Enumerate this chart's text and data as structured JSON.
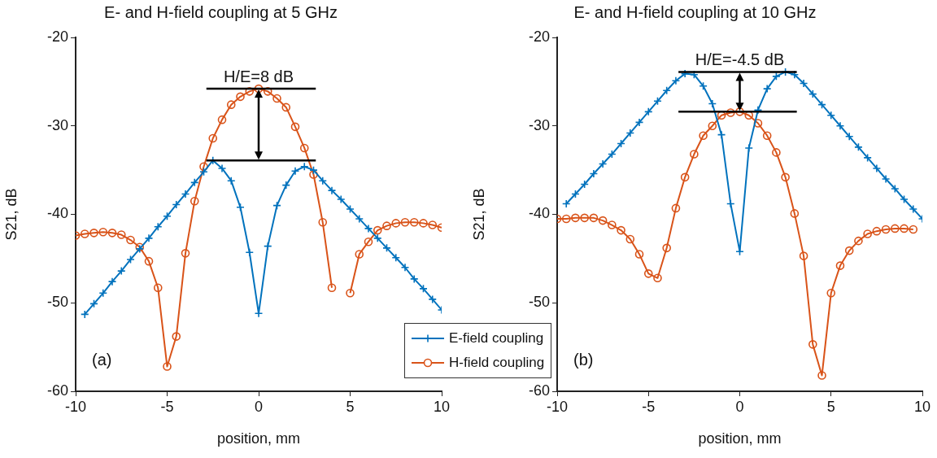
{
  "chart_data": [
    {
      "type": "line",
      "title": "E- and H-field coupling at 5 GHz",
      "xlabel": "position, mm",
      "ylabel": "S21, dB",
      "xlim": [
        -10,
        10
      ],
      "xticks": [
        -10,
        -5,
        0,
        5,
        10
      ],
      "ylim": [
        -60,
        -20
      ],
      "yticks": [
        -60,
        -50,
        -40,
        -30,
        -20
      ],
      "grid": false,
      "legend": "bottom right",
      "annotations": [
        {
          "text": "H/E=8 dB",
          "x": 0,
          "y": -25.8
        },
        "(a)"
      ],
      "series": [
        {
          "name": "E-field coupling",
          "color": "#0072bd",
          "marker": "cross",
          "x": [
            -9.5,
            -9,
            -8.5,
            -8,
            -7.5,
            -7,
            -6.5,
            -6,
            -5.5,
            -5,
            -4.5,
            -4,
            -3.5,
            -3,
            -2.5,
            -2,
            -1.5,
            -1,
            -0.5,
            0,
            0.5,
            1,
            1.5,
            2,
            2.5,
            3,
            3.5,
            4,
            4.5,
            5,
            5.5,
            6,
            6.5,
            7,
            7.5,
            8,
            8.5,
            9,
            9.5,
            10
          ],
          "values": [
            -51.3,
            -50.1,
            -48.9,
            -47.6,
            -46.4,
            -45.1,
            -43.9,
            -42.7,
            -41.4,
            -40.2,
            -38.9,
            -37.7,
            -36.4,
            -35.2,
            -33.9,
            -34.8,
            -36.2,
            -39.2,
            -44.3,
            -51.2,
            -43.6,
            -39,
            -36.7,
            -35.1,
            -34.6,
            -35,
            -36.2,
            -37.3,
            -38.3,
            -39.4,
            -40.5,
            -41.6,
            -42.7,
            -43.8,
            -44.9,
            -46,
            -47.3,
            -48.4,
            -49.6,
            -50.8
          ]
        },
        {
          "name": "H-field coupling",
          "color": "#d95319",
          "marker": "circle",
          "x": [
            -10,
            -9.5,
            -9,
            -8.5,
            -8,
            -7.5,
            -7,
            -6.5,
            -6,
            -5.5,
            -5,
            -4.5,
            -4,
            -3.5,
            -3,
            -2.5,
            -2,
            -1.5,
            -1,
            -0.5,
            0,
            0.5,
            1,
            1.5,
            2,
            2.5,
            3,
            3.5,
            4,
            4.5,
            5,
            5.5,
            6,
            6.5,
            7,
            7.5,
            8,
            8.5,
            9,
            9.5,
            10
          ],
          "values": [
            -42.4,
            -42.2,
            -42.1,
            -42,
            -42.1,
            -42.3,
            -42.9,
            -43.7,
            -45.3,
            -48.3,
            -57.2,
            -53.8,
            -44.4,
            -38.5,
            -34.6,
            -31.4,
            -29.3,
            -27.6,
            -26.7,
            -26.1,
            -25.8,
            -26.1,
            -26.9,
            -27.9,
            -30.1,
            -32.5,
            -35.5,
            -40.9,
            -48.3,
            null,
            -48.9,
            -44.5,
            -43.1,
            -41.8,
            -41.3,
            -41,
            -40.9,
            -40.9,
            -41,
            -41.2,
            -41.5
          ]
        }
      ]
    },
    {
      "type": "line",
      "title": "E- and H-field coupling at 10 GHz",
      "xlabel": "position, mm",
      "ylabel": "S21, dB",
      "xlim": [
        -10,
        10
      ],
      "xticks": [
        -10,
        -5,
        0,
        5,
        10
      ],
      "ylim": [
        -60,
        -20
      ],
      "yticks": [
        -60,
        -50,
        -40,
        -30,
        -20
      ],
      "grid": false,
      "annotations": [
        {
          "text": "H/E=-4.5 dB",
          "x": 0,
          "y": -28.4
        },
        "(b)"
      ],
      "series": [
        {
          "color": "#0072bd",
          "marker": "cross",
          "x": [
            -9.5,
            -9,
            -8.5,
            -8,
            -7.5,
            -7,
            -6.5,
            -6,
            -5.5,
            -5,
            -4.5,
            -4,
            -3.5,
            -3,
            -2.5,
            -2,
            -1.5,
            -1,
            -0.5,
            0,
            0.5,
            1,
            1.5,
            2,
            2.5,
            3,
            3.5,
            4,
            4.5,
            5,
            5.5,
            6,
            6.5,
            7,
            7.5,
            8,
            8.5,
            9,
            9.5,
            10
          ],
          "values": [
            -38.8,
            -37.7,
            -36.6,
            -35.4,
            -34.3,
            -33.2,
            -32,
            -30.8,
            -29.6,
            -28.4,
            -27.2,
            -26,
            -24.9,
            -24.1,
            -24.2,
            -25.5,
            -27.5,
            -31,
            -38.8,
            -44.2,
            -32.5,
            -28.2,
            -25.8,
            -24.4,
            -23.9,
            -24.2,
            -25.2,
            -26.4,
            -27.6,
            -28.8,
            -30,
            -31.2,
            -32.4,
            -33.6,
            -34.8,
            -36,
            -37.1,
            -38.3,
            -39.4,
            -40.5
          ]
        },
        {
          "color": "#d95319",
          "marker": "circle",
          "x": [
            -10,
            -9.5,
            -9,
            -8.5,
            -8,
            -7.5,
            -7,
            -6.5,
            -6,
            -5.5,
            -5,
            -4.5,
            -4,
            -3.5,
            -3,
            -2.5,
            -2,
            -1.5,
            -1,
            -0.5,
            0,
            0.5,
            1,
            1.5,
            2,
            2.5,
            3,
            3.5,
            4,
            4.5,
            5,
            5.5,
            6,
            6.5,
            7,
            7.5,
            8,
            8.5,
            9,
            9.5
          ],
          "values": [
            -40.5,
            -40.5,
            -40.4,
            -40.4,
            -40.4,
            -40.7,
            -41.2,
            -41.8,
            -42.8,
            -44.5,
            -46.7,
            -47.2,
            -43.8,
            -39.3,
            -35.8,
            -33.2,
            -31.1,
            -30,
            -28.8,
            -28.5,
            -28.4,
            -28.8,
            -29.7,
            -31.1,
            -33,
            -35.8,
            -39.9,
            -44.7,
            -54.7,
            -58.2,
            -48.9,
            -45.8,
            -44.1,
            -43,
            -42.2,
            -41.9,
            -41.7,
            -41.6,
            -41.6,
            -41.7
          ]
        }
      ]
    }
  ]
}
